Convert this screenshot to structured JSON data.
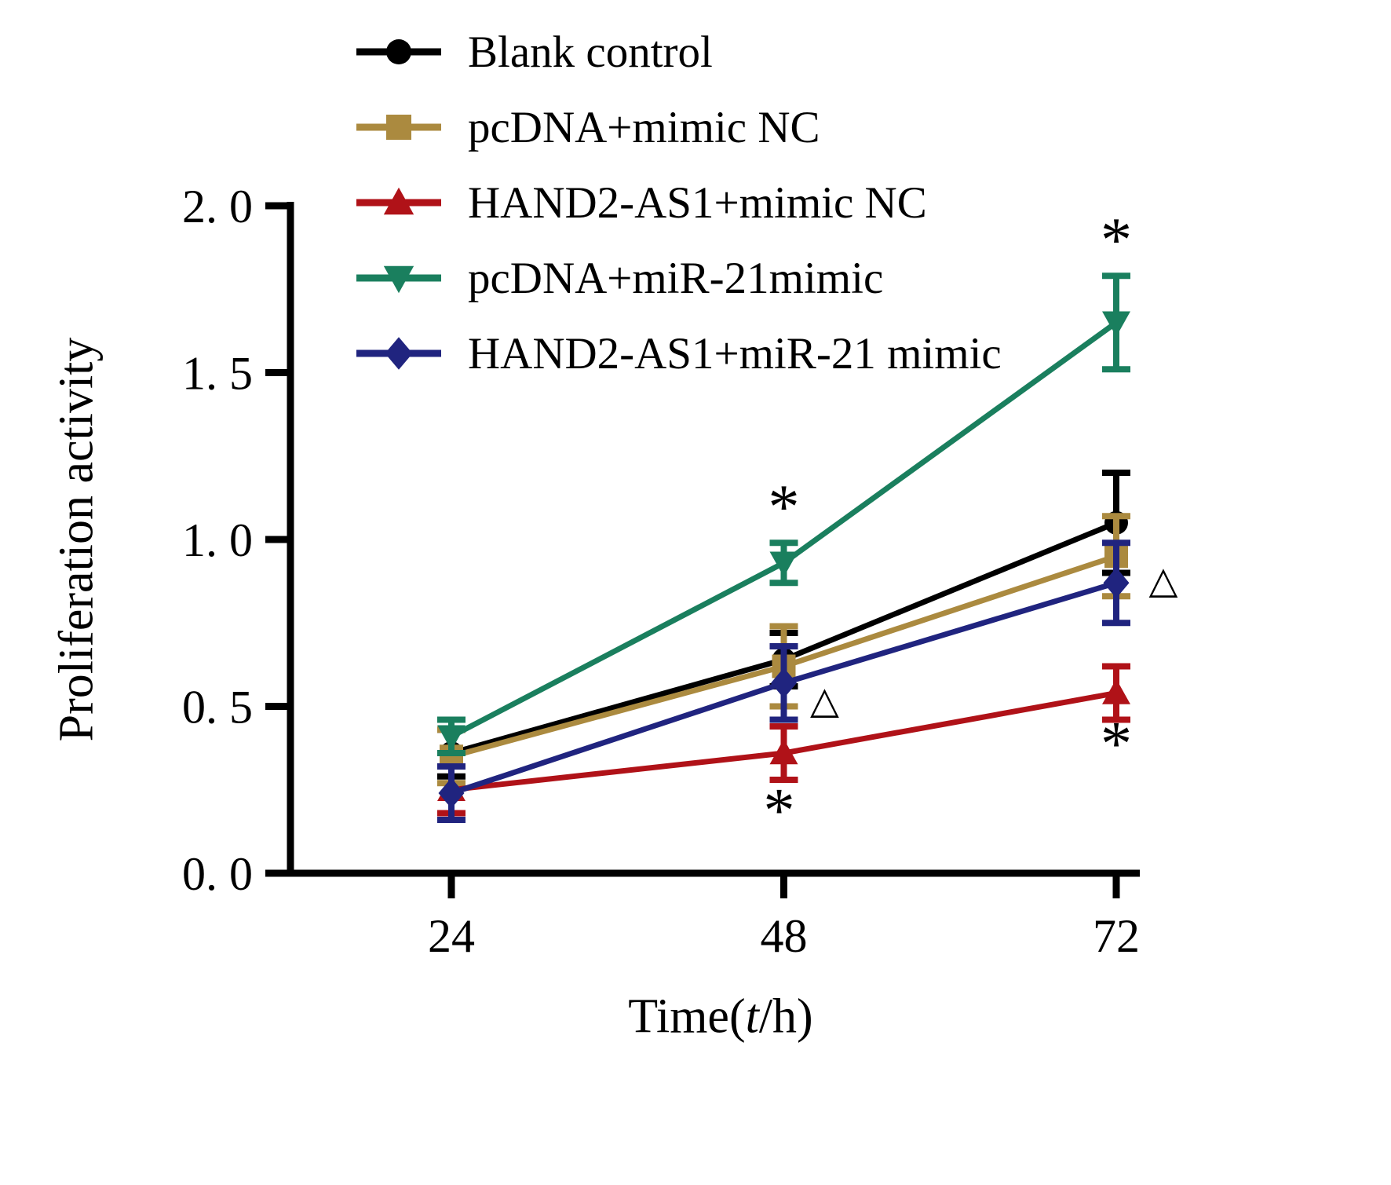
{
  "chart_data": {
    "type": "line",
    "title": "",
    "ylabel": "Proliferation activity",
    "xlabel_parts": [
      "Time(",
      "t",
      "/h)"
    ],
    "categories": [
      24,
      48,
      72
    ],
    "x_tick_labels": [
      "24",
      "48",
      "72"
    ],
    "y_ticks": [
      0,
      0.5,
      1.0,
      1.5,
      2.0
    ],
    "y_tick_labels": [
      "0. 0",
      "0. 5",
      "1. 0",
      "1. 5",
      "2. 0"
    ],
    "ylim": [
      0,
      2.0
    ],
    "grid": false,
    "legend_position": "top-left-inside",
    "series": [
      {
        "name": "Blank control",
        "color": "#000000",
        "marker": "circle",
        "values": [
          0.36,
          0.64,
          1.05
        ],
        "errors": [
          0.07,
          0.08,
          0.15
        ]
      },
      {
        "name": "pcDNA+mimic NC",
        "color": "#ab8a3f",
        "marker": "square",
        "values": [
          0.35,
          0.62,
          0.95
        ],
        "errors": [
          0.08,
          0.12,
          0.12
        ]
      },
      {
        "name": "HAND2-AS1+mimic NC",
        "color": "#b01218",
        "marker": "triangle-up",
        "values": [
          0.25,
          0.36,
          0.54
        ],
        "errors": [
          0.07,
          0.08,
          0.08
        ]
      },
      {
        "name": "pcDNA+miR-21mimic",
        "color": "#1a7f5e",
        "marker": "triangle-down",
        "values": [
          0.41,
          0.93,
          1.65
        ],
        "errors": [
          0.05,
          0.06,
          0.14
        ]
      },
      {
        "name": "HAND2-AS1+miR-21 mimic",
        "color": "#20247f",
        "marker": "diamond",
        "values": [
          0.24,
          0.57,
          0.87
        ],
        "errors": [
          0.08,
          0.11,
          0.12
        ]
      }
    ],
    "annotations": [
      {
        "text": "*",
        "x": 48,
        "y": 1.13,
        "dx": 0
      },
      {
        "text": "*",
        "x": 72,
        "y": 1.93,
        "dx": 0
      },
      {
        "text": "*",
        "x": 48,
        "y": 0.22,
        "dx": -6
      },
      {
        "text": "*",
        "x": 72,
        "y": 0.42,
        "dx": 0
      },
      {
        "text": "△",
        "x": 48,
        "y": 0.52,
        "dx": 52
      },
      {
        "text": "△",
        "x": 72,
        "y": 0.88,
        "dx": 60
      }
    ]
  }
}
